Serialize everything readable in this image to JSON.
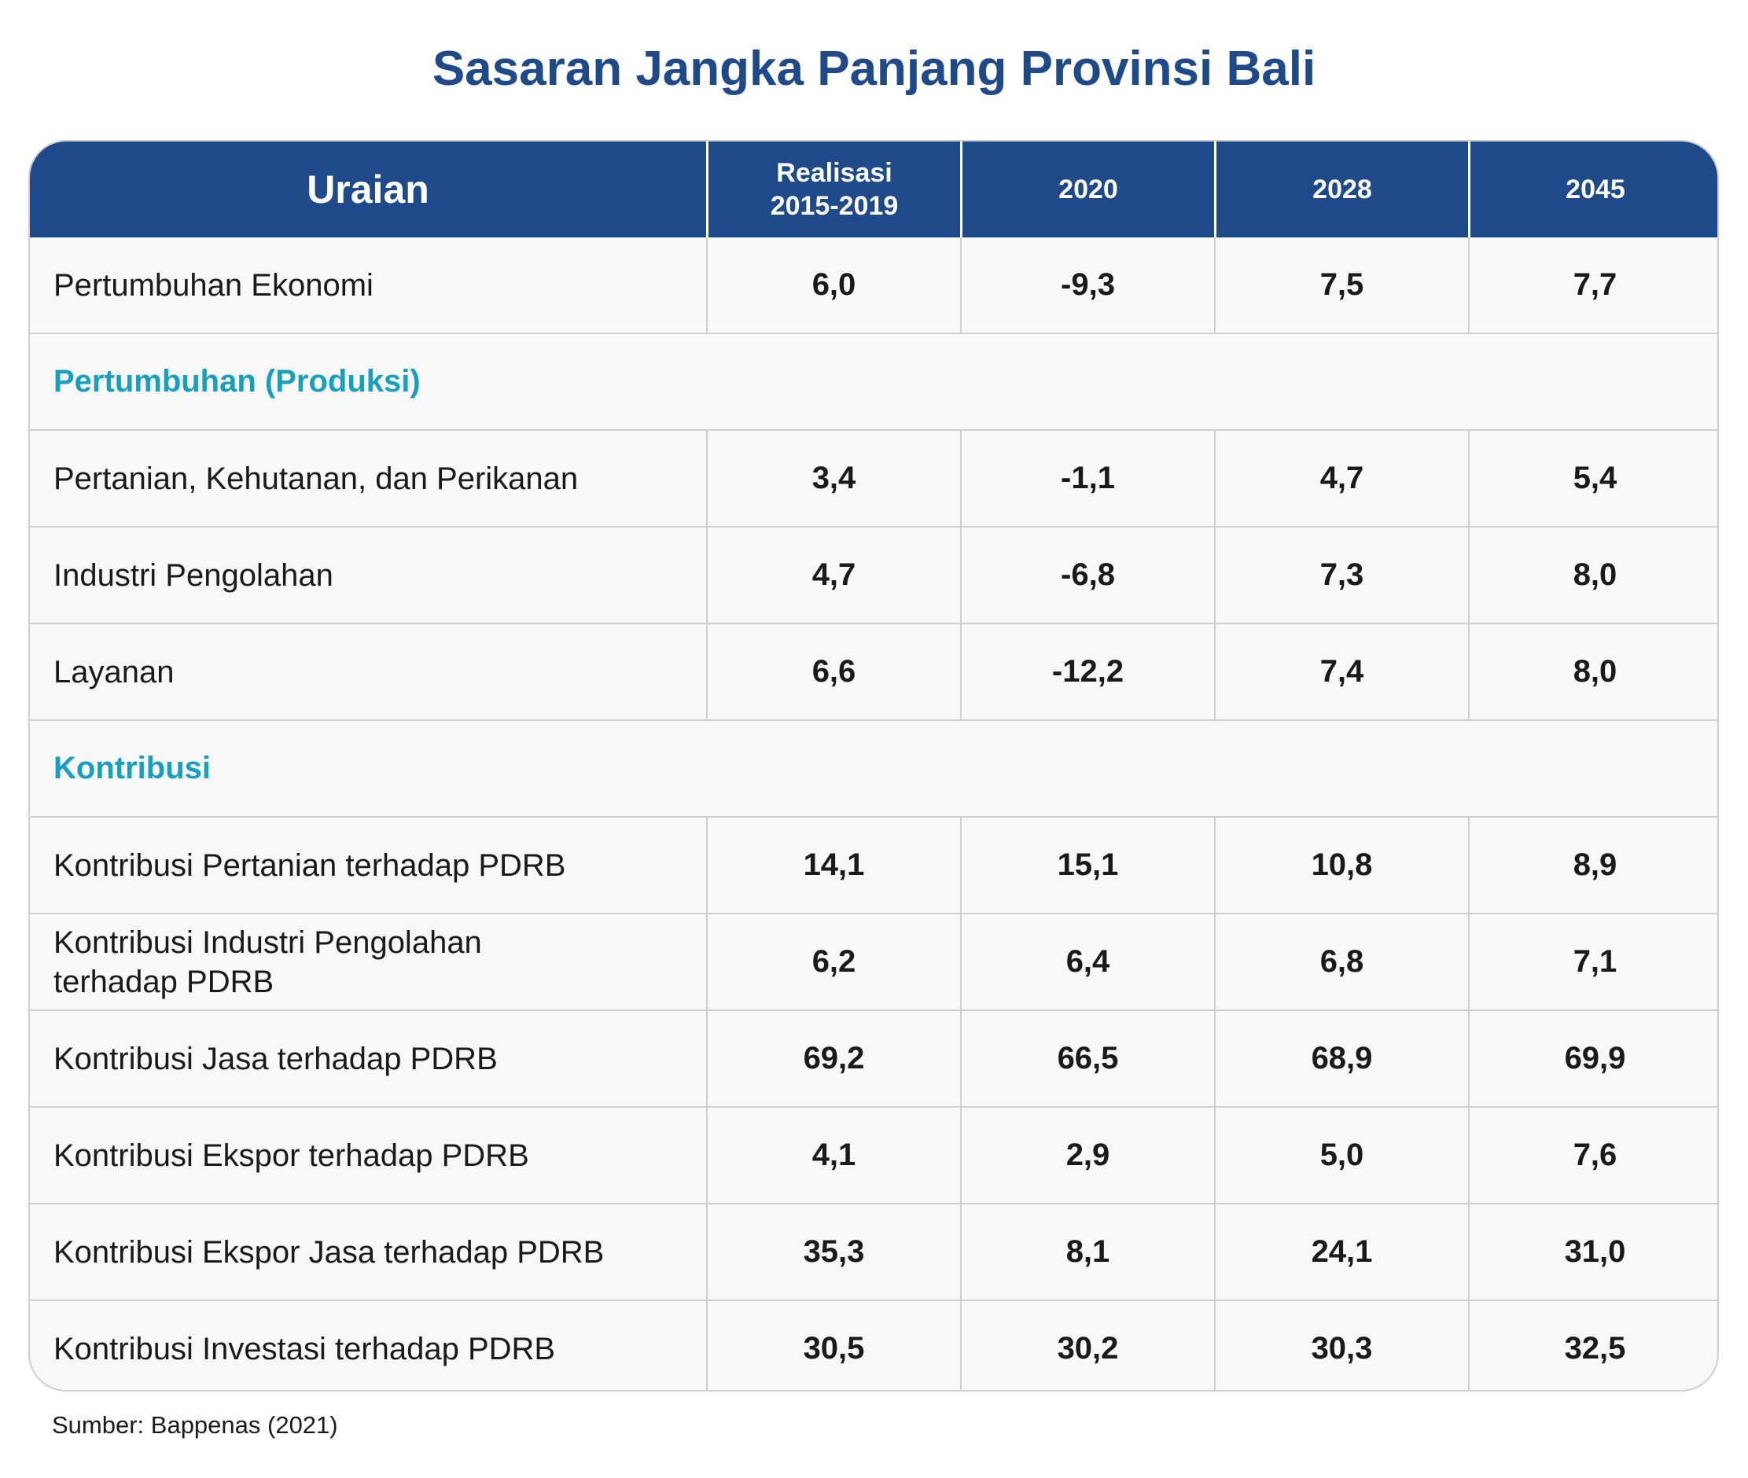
{
  "title": "Sasaran Jangka Panjang Provinsi Bali",
  "header": {
    "col1": "Uraian",
    "col2_line1": "Realisasi",
    "col2_line2": "2015-2019",
    "col3": "2020",
    "col4": "2028",
    "col5": "2045"
  },
  "rows": [
    {
      "type": "data",
      "label": "Pertumbuhan Ekonomi",
      "values": [
        "6,0",
        "-9,3",
        "7,5",
        "7,7"
      ]
    },
    {
      "type": "section",
      "label": "Pertumbuhan (Produksi)"
    },
    {
      "type": "data",
      "label": "Pertanian, Kehutanan, dan Perikanan",
      "values": [
        "3,4",
        "-1,1",
        "4,7",
        "5,4"
      ]
    },
    {
      "type": "data",
      "label": "Industri Pengolahan",
      "values": [
        "4,7",
        "-6,8",
        "7,3",
        "8,0"
      ]
    },
    {
      "type": "data",
      "label": "Layanan",
      "values": [
        "6,6",
        "-12,2",
        "7,4",
        "8,0"
      ]
    },
    {
      "type": "section",
      "label": "Kontribusi"
    },
    {
      "type": "data",
      "label": "Kontribusi Pertanian terhadap PDRB",
      "values": [
        "14,1",
        "15,1",
        "10,8",
        "8,9"
      ]
    },
    {
      "type": "data",
      "label_line1": "Kontribusi Industri Pengolahan",
      "label_line2": "terhadap PDRB",
      "values": [
        "6,2",
        "6,4",
        "6,8",
        "7,1"
      ]
    },
    {
      "type": "data",
      "label": "Kontribusi Jasa terhadap PDRB",
      "values": [
        "69,2",
        "66,5",
        "68,9",
        "69,9"
      ]
    },
    {
      "type": "data",
      "label": "Kontribusi Ekspor terhadap PDRB",
      "values": [
        "4,1",
        "2,9",
        "5,0",
        "7,6"
      ]
    },
    {
      "type": "data",
      "label": "Kontribusi Ekspor Jasa terhadap PDRB",
      "values": [
        "35,3",
        "8,1",
        "24,1",
        "31,0"
      ]
    },
    {
      "type": "data",
      "label": "Kontribusi Investasi terhadap PDRB",
      "values": [
        "30,5",
        "30,2",
        "30,3",
        "32,5"
      ]
    }
  ],
  "source": "Sumber: Bappenas (2021)",
  "colors": {
    "header_bg": "#1e4a8a",
    "title": "#1e4a8a",
    "section_text": "#17a0be",
    "row_bg": "#f8f8f8",
    "border": "#cfcfcf"
  }
}
